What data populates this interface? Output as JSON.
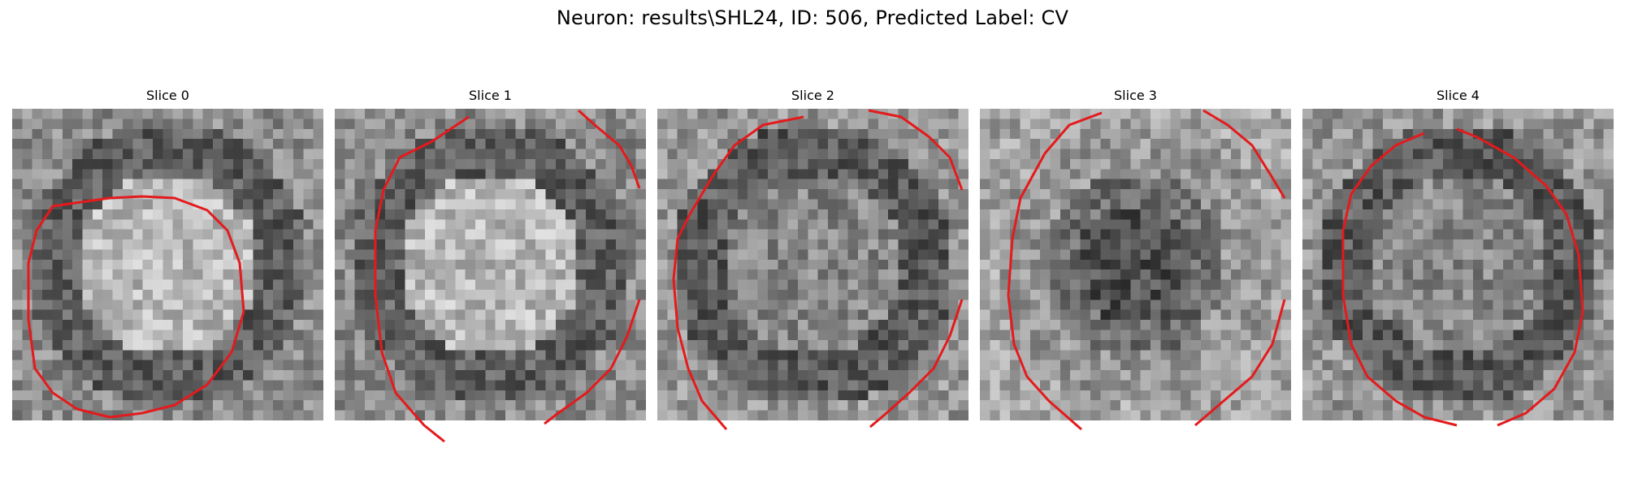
{
  "figure": {
    "title": "Neuron: results\\SHL24, ID: 506, Predicted Label: CV"
  },
  "slices": [
    {
      "title": "Slice 0",
      "center_brightness": "bright",
      "ring": "dark"
    },
    {
      "title": "Slice 1",
      "center_brightness": "bright",
      "ring": "dark"
    },
    {
      "title": "Slice 2",
      "center_brightness": "mixed",
      "ring": "none"
    },
    {
      "title": "Slice 3",
      "center_brightness": "dark",
      "ring": "none"
    },
    {
      "title": "Slice 4",
      "center_brightness": "mixed",
      "ring": "dark"
    }
  ],
  "colors": {
    "contour": "#e41a1c",
    "background": "#ffffff"
  }
}
